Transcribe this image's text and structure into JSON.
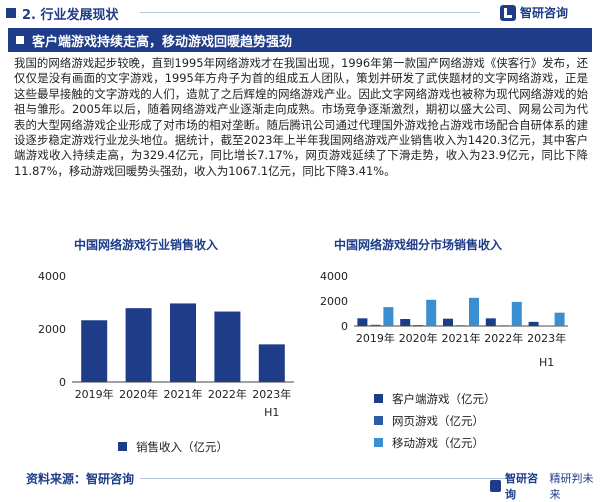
{
  "header": {
    "section_title": "2. 行业发展现状",
    "brand_name": "智研咨询"
  },
  "banner": {
    "title": "客户端游戏持续走高，移动游戏回暖趋势强劲"
  },
  "body_text": "我国的网络游戏起步较晚，直到1995年网络游戏才在我国出现，1996年第一款国产网络游戏《侠客行》发布，还仅仅是没有画面的文字游戏，1995年方舟子为首的组成五人团队，策划并研发了武侠题材的文字网络游戏，正是这些最早接触的文字游戏的人们，造就了之后辉煌的网络游戏产业。因此文字网络游戏也被称为现代网络游戏的始祖与雏形。2005年以后，随着网络游戏产业逐渐走向成熟。市场竞争逐渐激烈，期初以盛大公司、网易公司为代表的大型网络游戏企业形成了对市场的相对垄断。随后腾讯公司通过代理国外游戏抢占游戏市场配合自研体系的建设逐步稳定游戏行业龙头地位。据统计，截至2023年上半年我国网络游戏产业销售收入为1420.3亿元，其中客户端游戏收入持续走高，为329.4亿元，同比增长7.17%，网页游戏延续了下滑走势，收入为23.9亿元，同比下降11.87%，移动游戏回暖势头强劲，收入为1067.1亿元，同比下降3.41%。",
  "footer": {
    "source": "资料来源：智研咨询",
    "brand_name": "智研咨询",
    "slogan": "精研判未来"
  },
  "colors": {
    "navy": "#1f3c88",
    "bar_dark": "#1f3c88",
    "bar_mid": "#2e5aa6",
    "bar_light": "#3b8fd0"
  },
  "chart_data": [
    {
      "type": "bar",
      "title": "中国网络游戏行业销售收入",
      "categories": [
        "2019年",
        "2020年",
        "2021年",
        "2022年",
        "2023年H1"
      ],
      "series": [
        {
          "name": "销售收入（亿元）",
          "values": [
            2330,
            2787,
            2965,
            2659,
            1420.3
          ]
        }
      ],
      "yticks": [
        0,
        2000,
        4000
      ],
      "ylim": [
        0,
        4000
      ],
      "legend": "bottom"
    },
    {
      "type": "bar",
      "title": "中国网络游戏细分市场销售收入",
      "categories": [
        "2019年",
        "2020年",
        "2021年",
        "2022年",
        "2023年H1"
      ],
      "series": [
        {
          "name": "客户端游戏（亿元）",
          "values": [
            615,
            559,
            588,
            614,
            329.4
          ]
        },
        {
          "name": "网页游戏（亿元）",
          "values": [
            98,
            76,
            60,
            53,
            23.9
          ]
        },
        {
          "name": "移动游戏（亿元）",
          "values": [
            1513,
            2097,
            2255,
            1930,
            1067.1
          ]
        }
      ],
      "yticks": [
        0,
        2000,
        4000
      ],
      "ylim": [
        0,
        4000
      ],
      "legend": "bottom"
    }
  ]
}
